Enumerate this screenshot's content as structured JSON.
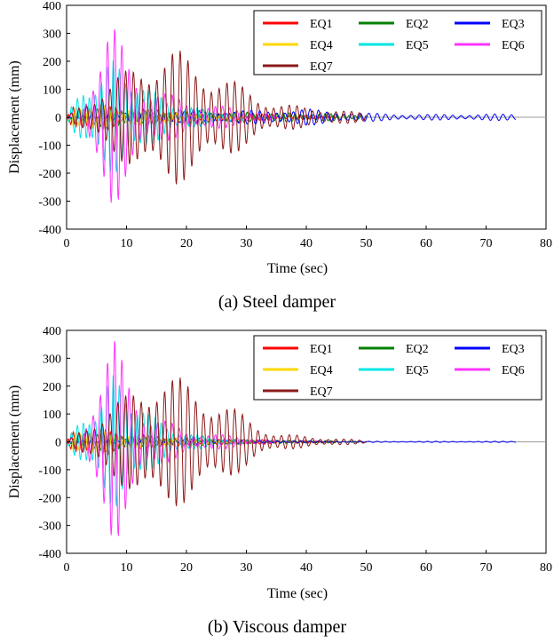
{
  "chart_data": [
    {
      "type": "line",
      "title": "(a) Steel damper",
      "caption": "(a) Steel damper",
      "xlabel": "Time (sec)",
      "ylabel": "Displacement (mm)",
      "xlim": [
        0,
        80
      ],
      "ylim": [
        -400,
        400
      ],
      "xticks": [
        0,
        10,
        20,
        30,
        40,
        50,
        60,
        70,
        80
      ],
      "yticks": [
        400,
        300,
        200,
        100,
        0,
        -100,
        -200,
        -300,
        -400
      ],
      "grid": false,
      "legend_position": "top-right",
      "series": [
        {
          "name": "EQ1",
          "color": "#ff0000",
          "duration": 45,
          "env": [
            [
              0,
              0
            ],
            [
              1,
              40
            ],
            [
              3,
              60
            ],
            [
              8,
              40
            ],
            [
              15,
              25
            ],
            [
              25,
              15
            ],
            [
              35,
              10
            ],
            [
              45,
              5
            ]
          ],
          "period": 0.9
        },
        {
          "name": "EQ2",
          "color": "#008000",
          "duration": 50,
          "env": [
            [
              0,
              0
            ],
            [
              2,
              20
            ],
            [
              5,
              45
            ],
            [
              10,
              30
            ],
            [
              20,
              25
            ],
            [
              30,
              20
            ],
            [
              40,
              15
            ],
            [
              50,
              10
            ]
          ],
          "period": 1.0
        },
        {
          "name": "EQ3",
          "color": "#0000ff",
          "duration": 75,
          "env": [
            [
              0,
              0
            ],
            [
              5,
              10
            ],
            [
              15,
              20
            ],
            [
              30,
              25
            ],
            [
              40,
              30
            ],
            [
              50,
              15
            ],
            [
              60,
              10
            ],
            [
              75,
              12
            ]
          ],
          "period": 1.4
        },
        {
          "name": "EQ4",
          "color": "#ffd700",
          "duration": 30,
          "env": [
            [
              0,
              0
            ],
            [
              1,
              40
            ],
            [
              3,
              55
            ],
            [
              8,
              35
            ],
            [
              15,
              20
            ],
            [
              30,
              5
            ]
          ],
          "period": 0.8
        },
        {
          "name": "EQ5",
          "color": "#00e5e5",
          "duration": 30,
          "env": [
            [
              0,
              0
            ],
            [
              3,
              150
            ],
            [
              5,
              130
            ],
            [
              8,
              220
            ],
            [
              10,
              200
            ],
            [
              14,
              100
            ],
            [
              20,
              40
            ],
            [
              30,
              10
            ]
          ],
          "period": 1.0
        },
        {
          "name": "EQ6",
          "color": "#ff33ff",
          "duration": 35,
          "env": [
            [
              0,
              0
            ],
            [
              3,
              60
            ],
            [
              5,
              240
            ],
            [
              7,
              350
            ],
            [
              8,
              330
            ],
            [
              10,
              220
            ],
            [
              13,
              120
            ],
            [
              20,
              60
            ],
            [
              35,
              10
            ]
          ],
          "period": 1.2
        },
        {
          "name": "EQ7",
          "color": "#8b1a1a",
          "duration": 50,
          "env": [
            [
              0,
              0
            ],
            [
              5,
              100
            ],
            [
              10,
              170
            ],
            [
              15,
              250
            ],
            [
              18,
              250
            ],
            [
              22,
              200
            ],
            [
              28,
              130
            ],
            [
              35,
              50
            ],
            [
              50,
              15
            ]
          ],
          "period": 1.3
        }
      ]
    },
    {
      "type": "line",
      "title": "(b) Viscous damper",
      "caption": "(b) Viscous damper",
      "xlabel": "Time (sec)",
      "ylabel": "Displacement (mm)",
      "xlim": [
        0,
        80
      ],
      "ylim": [
        -400,
        400
      ],
      "xticks": [
        0,
        10,
        20,
        30,
        40,
        50,
        60,
        70,
        80
      ],
      "yticks": [
        400,
        300,
        200,
        100,
        0,
        -100,
        -200,
        -300,
        -400
      ],
      "grid": false,
      "legend_position": "top-right",
      "series": [
        {
          "name": "EQ1",
          "color": "#ff0000",
          "duration": 45,
          "env": [
            [
              0,
              0
            ],
            [
              1,
              40
            ],
            [
              3,
              60
            ],
            [
              8,
              40
            ],
            [
              15,
              20
            ],
            [
              25,
              10
            ],
            [
              35,
              8
            ],
            [
              45,
              3
            ]
          ],
          "period": 0.9
        },
        {
          "name": "EQ2",
          "color": "#008000",
          "duration": 50,
          "env": [
            [
              0,
              0
            ],
            [
              2,
              20
            ],
            [
              5,
              40
            ],
            [
              10,
              25
            ],
            [
              20,
              15
            ],
            [
              30,
              8
            ],
            [
              40,
              5
            ],
            [
              50,
              3
            ]
          ],
          "period": 1.0
        },
        {
          "name": "EQ3",
          "color": "#0000ff",
          "duration": 75,
          "env": [
            [
              0,
              0
            ],
            [
              5,
              8
            ],
            [
              15,
              10
            ],
            [
              30,
              6
            ],
            [
              40,
              4
            ],
            [
              50,
              2
            ],
            [
              75,
              2
            ]
          ],
          "period": 1.4
        },
        {
          "name": "EQ4",
          "color": "#ffd700",
          "duration": 30,
          "env": [
            [
              0,
              0
            ],
            [
              1,
              40
            ],
            [
              3,
              55
            ],
            [
              8,
              30
            ],
            [
              15,
              15
            ],
            [
              30,
              3
            ]
          ],
          "period": 0.8
        },
        {
          "name": "EQ5",
          "color": "#00e5e5",
          "duration": 30,
          "env": [
            [
              0,
              0
            ],
            [
              3,
              130
            ],
            [
              5,
              120
            ],
            [
              8,
              260
            ],
            [
              10,
              230
            ],
            [
              14,
              100
            ],
            [
              20,
              30
            ],
            [
              30,
              5
            ]
          ],
          "period": 1.0
        },
        {
          "name": "EQ6",
          "color": "#ff33ff",
          "duration": 35,
          "env": [
            [
              0,
              0
            ],
            [
              3,
              60
            ],
            [
              5,
              240
            ],
            [
              7,
              370
            ],
            [
              8,
              380
            ],
            [
              10,
              250
            ],
            [
              13,
              120
            ],
            [
              20,
              40
            ],
            [
              35,
              5
            ]
          ],
          "period": 1.2
        },
        {
          "name": "EQ7",
          "color": "#8b1a1a",
          "duration": 50,
          "env": [
            [
              0,
              0
            ],
            [
              5,
              100
            ],
            [
              10,
              170
            ],
            [
              15,
              270
            ],
            [
              18,
              240
            ],
            [
              22,
              200
            ],
            [
              28,
              120
            ],
            [
              35,
              30
            ],
            [
              50,
              5
            ]
          ],
          "period": 1.3
        }
      ]
    }
  ]
}
